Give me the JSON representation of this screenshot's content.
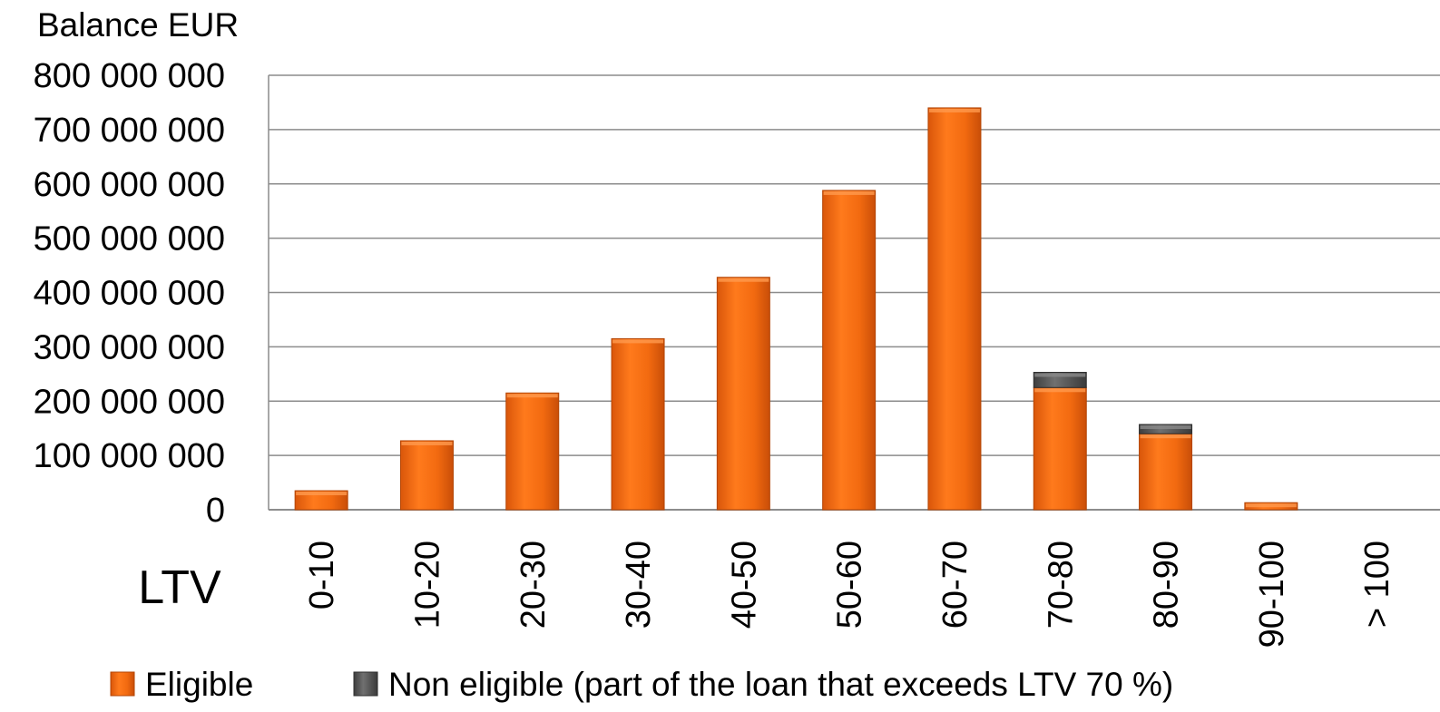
{
  "chart_data": {
    "type": "bar",
    "stacked": true,
    "y_title": "Balance EUR",
    "x_title": "LTV",
    "categories": [
      "0-10",
      "10-20",
      "20-30",
      "30-40",
      "40-50",
      "50-60",
      "60-70",
      "70-80",
      "80-90",
      "90-100",
      "> 100"
    ],
    "y_ticks": [
      "0",
      "100 000 000",
      "200 000 000",
      "300 000 000",
      "400 000 000",
      "500 000 000",
      "600 000 000",
      "700 000 000",
      "800 000 000"
    ],
    "ylim": [
      0,
      800000000
    ],
    "grid": true,
    "legend_position": "bottom",
    "series": [
      {
        "name": "Eligible",
        "color": "#f26a10",
        "values": [
          35000000,
          127000000,
          215000000,
          315000000,
          428000000,
          588000000,
          740000000,
          225000000,
          140000000,
          13000000,
          0
        ]
      },
      {
        "name": "Non eligible (part of the loan that exceeds LTV 70 %)",
        "color": "#595959",
        "values": [
          0,
          0,
          0,
          0,
          0,
          0,
          0,
          28000000,
          17000000,
          0,
          0
        ]
      }
    ]
  }
}
